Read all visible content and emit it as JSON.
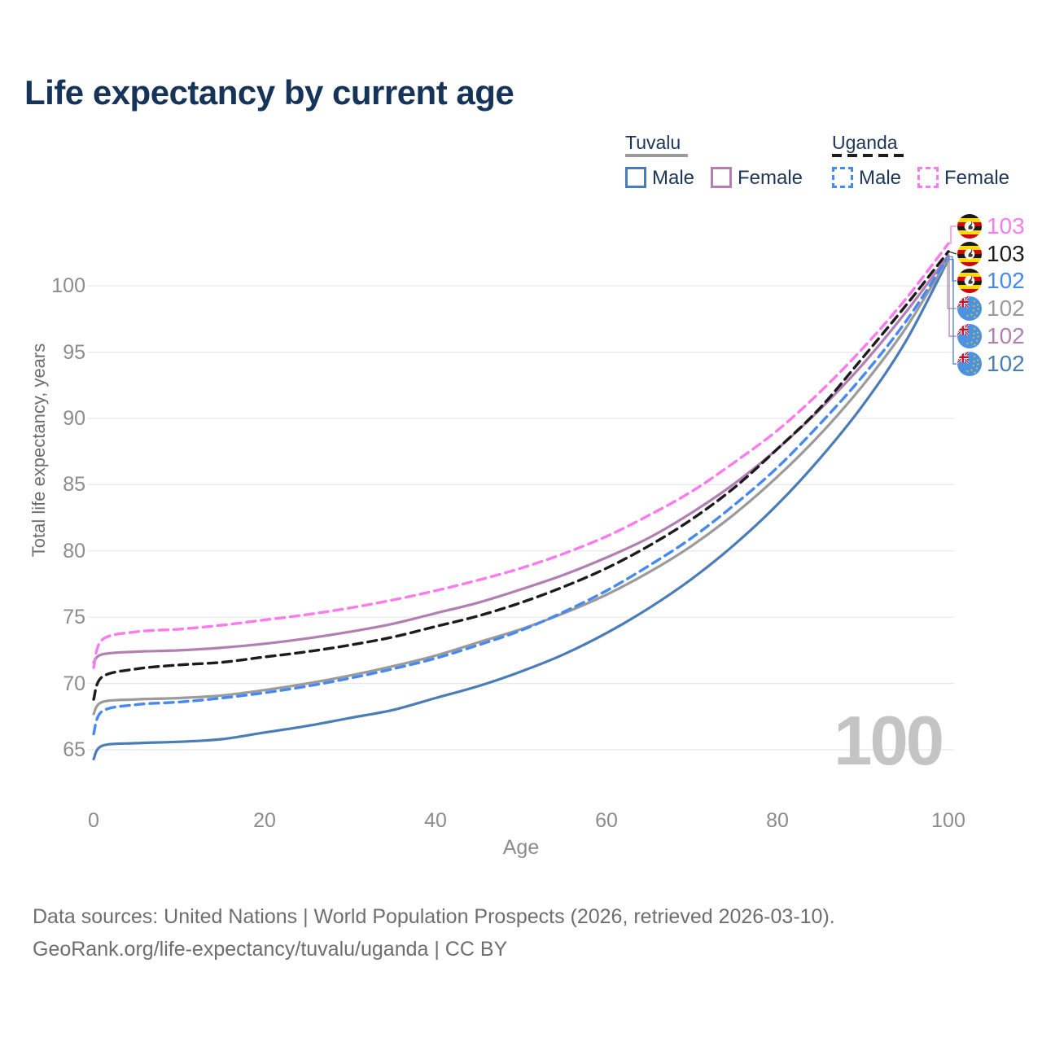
{
  "title": "Life expectancy by current age",
  "watermark": "100",
  "legend": {
    "groups": [
      {
        "label": "Tuvalu",
        "underline_color": "#9b9b9b",
        "underline_dashed": false,
        "items": [
          {
            "label": "Male",
            "color": "#4a7db8",
            "dashed": false
          },
          {
            "label": "Female",
            "color": "#b27fb2",
            "dashed": false
          }
        ]
      },
      {
        "label": "Uganda",
        "underline_color": "#1c1c1c",
        "underline_dashed": true,
        "items": [
          {
            "label": "Male",
            "color": "#4689f2",
            "dashed": true
          },
          {
            "label": "Female",
            "color": "#fb7bee",
            "dashed": true
          }
        ]
      }
    ]
  },
  "end_labels": [
    {
      "flag": "uganda",
      "series": "Uganda Female",
      "value": "103",
      "color": "#fb7bee"
    },
    {
      "flag": "uganda",
      "series": "Uganda",
      "value": "103",
      "color": "#1c1c1c"
    },
    {
      "flag": "uganda",
      "series": "Uganda Male",
      "value": "102",
      "color": "#4689f2"
    },
    {
      "flag": "tuvalu",
      "series": "Tuvalu",
      "value": "102",
      "color": "#9b9b9b"
    },
    {
      "flag": "tuvalu",
      "series": "Tuvalu Female",
      "value": "102",
      "color": "#b27fb2"
    },
    {
      "flag": "tuvalu",
      "series": "Tuvalu Male",
      "value": "102",
      "color": "#4a7db8"
    }
  ],
  "footer": {
    "line1": "Data sources: United Nations | World Population Prospects (2026, retrieved 2026-03-10).",
    "line2": "GeoRank.org/life-expectancy/tuvalu/uganda | CC BY"
  },
  "chart_data": {
    "type": "line",
    "title": "Life expectancy by current age",
    "xlabel": "Age",
    "ylabel": "Total life expectancy, years",
    "x_ticks": [
      0,
      20,
      40,
      60,
      80,
      100
    ],
    "y_ticks": [
      65,
      70,
      75,
      80,
      85,
      90,
      95,
      100
    ],
    "xlim": [
      0,
      100
    ],
    "ylim": [
      63.5,
      104
    ],
    "grid": "horizontal",
    "legend_position": "top-right",
    "ages": [
      0,
      1,
      5,
      10,
      15,
      20,
      25,
      30,
      35,
      40,
      45,
      50,
      55,
      60,
      65,
      70,
      75,
      80,
      85,
      90,
      95,
      100
    ],
    "series": [
      {
        "name": "Uganda Female",
        "country": "Uganda",
        "sex": "Female",
        "style": "dashed",
        "color": "#fb7bee",
        "end_label": "103",
        "values": [
          71.2,
          73.3,
          73.9,
          74.1,
          74.4,
          74.8,
          75.2,
          75.7,
          76.3,
          77.0,
          77.8,
          78.7,
          79.8,
          81.1,
          82.7,
          84.5,
          86.7,
          89.1,
          92.0,
          95.3,
          99.0,
          103.2
        ]
      },
      {
        "name": "Uganda",
        "country": "Uganda",
        "sex": "All",
        "style": "dashed",
        "color": "#1c1c1c",
        "end_label": "103",
        "values": [
          68.8,
          70.5,
          71.1,
          71.4,
          71.6,
          72.0,
          72.4,
          72.9,
          73.5,
          74.3,
          75.1,
          76.1,
          77.3,
          78.7,
          80.4,
          82.4,
          84.8,
          87.7,
          90.8,
          94.6,
          98.5,
          102.6
        ]
      },
      {
        "name": "Uganda Male",
        "country": "Uganda",
        "sex": "Male",
        "style": "dashed",
        "color": "#4689f2",
        "end_label": "102",
        "values": [
          66.2,
          67.9,
          68.4,
          68.6,
          68.9,
          69.3,
          69.8,
          70.4,
          71.1,
          71.9,
          72.9,
          74.0,
          75.4,
          77.0,
          78.9,
          81.0,
          83.5,
          86.3,
          89.6,
          93.2,
          97.3,
          102.2
        ]
      },
      {
        "name": "Tuvalu Female",
        "country": "Tuvalu",
        "sex": "Female",
        "style": "solid",
        "color": "#b27fb2",
        "end_label": "102",
        "values": [
          71.6,
          72.2,
          72.4,
          72.5,
          72.7,
          73.0,
          73.4,
          73.9,
          74.5,
          75.3,
          76.1,
          77.1,
          78.2,
          79.5,
          81.0,
          82.9,
          85.1,
          87.7,
          90.7,
          94.1,
          98.0,
          102.3
        ]
      },
      {
        "name": "Tuvalu",
        "country": "Tuvalu",
        "sex": "All",
        "style": "solid",
        "color": "#9b9b9b",
        "end_label": "102",
        "values": [
          67.7,
          68.6,
          68.8,
          68.9,
          69.1,
          69.5,
          70.0,
          70.6,
          71.3,
          72.1,
          73.1,
          74.1,
          75.3,
          76.7,
          78.4,
          80.4,
          82.8,
          85.6,
          88.8,
          92.5,
          96.8,
          102.1
        ]
      },
      {
        "name": "Tuvalu Male",
        "country": "Tuvalu",
        "sex": "Male",
        "style": "solid",
        "color": "#4a7db8",
        "end_label": "102",
        "values": [
          64.3,
          65.3,
          65.5,
          65.6,
          65.8,
          66.3,
          66.8,
          67.4,
          68.0,
          68.9,
          69.8,
          70.9,
          72.2,
          73.8,
          75.7,
          77.9,
          80.5,
          83.5,
          87.0,
          91.0,
          95.8,
          102.0
        ]
      }
    ]
  }
}
